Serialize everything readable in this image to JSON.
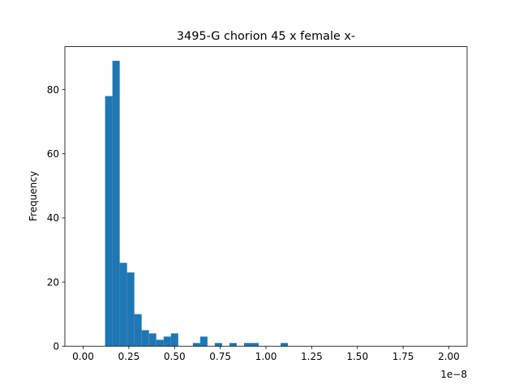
{
  "chart_data": {
    "type": "bar",
    "title": "3495-G chorion 45 x female x-",
    "ylabel": "Frequency",
    "xlabel": "",
    "x_offset_label": "1e−8",
    "xlim": [
      -0.1,
      2.1
    ],
    "ylim": [
      0,
      93.4
    ],
    "grid": false,
    "legend": "none",
    "bar_color": "#1f77b4",
    "bin_width": 0.04,
    "xticks": [
      0.0,
      0.25,
      0.5,
      0.75,
      1.0,
      1.25,
      1.5,
      1.75,
      2.0
    ],
    "xtick_labels": [
      "0.00",
      "0.25",
      "0.50",
      "0.75",
      "1.00",
      "1.25",
      "1.50",
      "1.75",
      "2.00"
    ],
    "yticks": [
      0,
      20,
      40,
      60,
      80
    ],
    "ytick_labels": [
      "0",
      "20",
      "40",
      "60",
      "80"
    ],
    "bins": [
      {
        "x": 0.12,
        "count": 78
      },
      {
        "x": 0.16,
        "count": 89
      },
      {
        "x": 0.2,
        "count": 26
      },
      {
        "x": 0.24,
        "count": 23
      },
      {
        "x": 0.28,
        "count": 10
      },
      {
        "x": 0.32,
        "count": 5
      },
      {
        "x": 0.36,
        "count": 4
      },
      {
        "x": 0.4,
        "count": 2
      },
      {
        "x": 0.44,
        "count": 3
      },
      {
        "x": 0.48,
        "count": 4
      },
      {
        "x": 0.6,
        "count": 1
      },
      {
        "x": 0.64,
        "count": 3
      },
      {
        "x": 0.72,
        "count": 1
      },
      {
        "x": 0.8,
        "count": 1
      },
      {
        "x": 0.88,
        "count": 1
      },
      {
        "x": 0.92,
        "count": 1
      },
      {
        "x": 1.08,
        "count": 1
      }
    ]
  }
}
